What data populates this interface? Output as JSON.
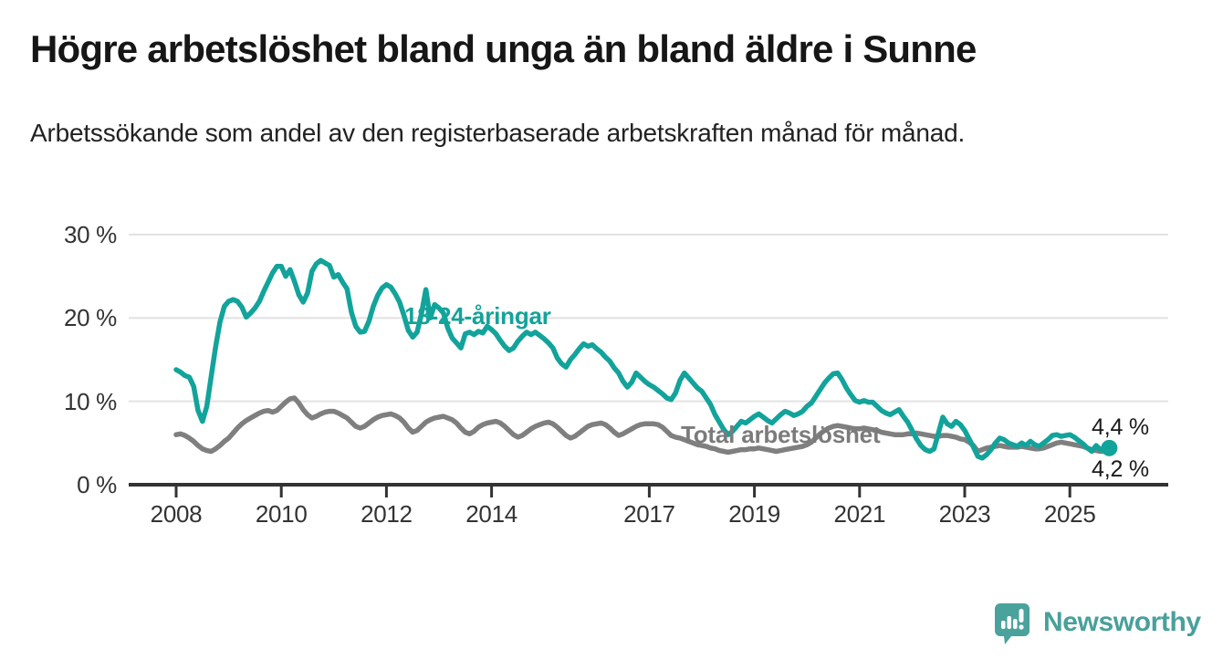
{
  "header": {
    "title": "Högre arbetslöshet bland unga än bland äldre i Sunne",
    "subtitle": "Arbetssökande som andel av den registerbaserade arbetskraften månad för månad."
  },
  "chart_data": {
    "type": "line",
    "title": "Högre arbetslöshet bland unga än bland äldre i Sunne",
    "x_start_year": 2008,
    "x_start_month": 1,
    "frequency": "monthly",
    "x_ticks": [
      2008,
      2010,
      2012,
      2014,
      2017,
      2019,
      2021,
      2023,
      2025
    ],
    "y_ticks": [
      {
        "value": 0,
        "label": "0 %"
      },
      {
        "value": 10,
        "label": "10 %"
      },
      {
        "value": 20,
        "label": "20 %"
      },
      {
        "value": 30,
        "label": "30 %"
      }
    ],
    "ylim": [
      0,
      32
    ],
    "grid": true,
    "grid_color": "#e2e2e2",
    "axis_color": "#333333",
    "legend_position": "inline-labels",
    "series": [
      {
        "name": "18-24-åringar",
        "color": "#12a39b",
        "end_value_label": "4,4 %",
        "values": [
          13.8,
          13.5,
          13.1,
          12.9,
          11.8,
          8.9,
          7.6,
          9.4,
          13.0,
          16.5,
          19.5,
          21.4,
          22.0,
          22.2,
          22.0,
          21.3,
          20.1,
          20.6,
          21.2,
          22.0,
          23.2,
          24.3,
          25.4,
          26.2,
          26.2,
          25.0,
          25.8,
          24.4,
          22.8,
          21.9,
          23.0,
          25.6,
          26.5,
          26.9,
          26.6,
          26.3,
          24.9,
          25.2,
          24.3,
          23.5,
          20.7,
          19.0,
          18.3,
          18.4,
          19.6,
          21.4,
          22.7,
          23.6,
          24.0,
          23.7,
          22.9,
          21.9,
          20.3,
          18.5,
          17.7,
          18.3,
          20.5,
          23.4,
          20.0,
          21.6,
          21.2,
          20.6,
          18.8,
          17.6,
          17.0,
          16.4,
          18.1,
          18.3,
          18.0,
          18.4,
          18.2,
          19.0,
          18.6,
          18.1,
          17.3,
          16.6,
          16.1,
          16.4,
          17.2,
          17.8,
          18.3,
          18.0,
          18.3,
          17.9,
          17.5,
          17.0,
          16.4,
          15.2,
          14.5,
          14.1,
          15.0,
          15.6,
          16.3,
          16.9,
          16.6,
          16.8,
          16.3,
          15.9,
          15.3,
          14.8,
          14.0,
          13.4,
          12.4,
          11.7,
          12.3,
          13.4,
          12.9,
          12.4,
          12.0,
          11.7,
          11.3,
          10.9,
          10.4,
          10.2,
          11.0,
          12.5,
          13.4,
          12.8,
          12.2,
          11.6,
          11.2,
          10.4,
          9.6,
          8.4,
          7.5,
          6.6,
          6.0,
          6.4,
          7.0,
          7.6,
          7.4,
          7.8,
          8.2,
          8.5,
          8.1,
          7.7,
          7.4,
          7.9,
          8.4,
          8.8,
          8.6,
          8.3,
          8.5,
          8.8,
          9.4,
          9.8,
          10.6,
          11.4,
          12.2,
          12.8,
          13.3,
          13.4,
          12.6,
          11.6,
          10.8,
          10.1,
          9.9,
          10.1,
          9.9,
          9.9,
          9.4,
          8.9,
          8.6,
          8.4,
          8.7,
          9.0,
          8.2,
          7.5,
          6.5,
          5.5,
          4.7,
          4.2,
          4.0,
          4.3,
          6.2,
          8.1,
          7.3,
          7.0,
          7.6,
          7.2,
          6.5,
          5.5,
          4.5,
          3.4,
          3.2,
          3.6,
          4.2,
          5.0,
          5.6,
          5.4,
          5.0,
          4.8,
          4.6,
          5.0,
          4.7,
          5.2,
          4.8,
          4.6,
          5.0,
          5.4,
          5.9,
          6.0,
          5.8,
          5.9,
          6.0,
          5.7,
          5.3,
          4.9,
          4.4,
          4.0,
          4.7,
          4.2,
          4.0,
          4.4
        ]
      },
      {
        "name": "Total arbetslöshet",
        "color": "#7f7f7f",
        "end_value_label": "4,2 %",
        "values": [
          6.0,
          6.1,
          5.9,
          5.6,
          5.2,
          4.7,
          4.3,
          4.1,
          4.0,
          4.3,
          4.7,
          5.2,
          5.6,
          6.2,
          6.8,
          7.3,
          7.7,
          8.0,
          8.3,
          8.6,
          8.8,
          8.9,
          8.7,
          8.9,
          9.4,
          9.9,
          10.3,
          10.4,
          9.8,
          9.0,
          8.4,
          8.0,
          8.2,
          8.5,
          8.7,
          8.8,
          8.8,
          8.6,
          8.3,
          8.0,
          7.5,
          7.0,
          6.8,
          7.0,
          7.4,
          7.8,
          8.1,
          8.3,
          8.4,
          8.5,
          8.3,
          8.0,
          7.5,
          6.8,
          6.3,
          6.5,
          7.0,
          7.5,
          7.8,
          8.0,
          8.1,
          8.2,
          8.0,
          7.8,
          7.4,
          6.8,
          6.3,
          6.1,
          6.4,
          6.9,
          7.2,
          7.4,
          7.5,
          7.6,
          7.4,
          7.0,
          6.5,
          6.0,
          5.7,
          5.9,
          6.3,
          6.7,
          7.0,
          7.2,
          7.4,
          7.5,
          7.3,
          6.9,
          6.4,
          5.9,
          5.6,
          5.8,
          6.2,
          6.6,
          7.0,
          7.2,
          7.3,
          7.4,
          7.2,
          6.8,
          6.3,
          5.9,
          6.1,
          6.4,
          6.7,
          7.0,
          7.2,
          7.3,
          7.3,
          7.3,
          7.2,
          6.9,
          6.4,
          5.9,
          5.7,
          5.6,
          5.4,
          5.2,
          5.0,
          4.8,
          4.7,
          4.6,
          4.4,
          4.3,
          4.1,
          4.0,
          3.9,
          4.0,
          4.1,
          4.2,
          4.2,
          4.3,
          4.3,
          4.4,
          4.3,
          4.2,
          4.1,
          4.0,
          4.1,
          4.2,
          4.3,
          4.4,
          4.5,
          4.6,
          4.8,
          5.1,
          5.6,
          6.1,
          6.5,
          6.8,
          7.0,
          7.1,
          7.0,
          6.9,
          6.8,
          6.7,
          6.7,
          6.8,
          6.7,
          6.6,
          6.5,
          6.3,
          6.2,
          6.1,
          6.0,
          6.0,
          6.0,
          6.1,
          6.1,
          6.2,
          6.1,
          6.0,
          5.9,
          5.8,
          5.8,
          5.9,
          5.9,
          5.8,
          5.7,
          5.5,
          5.4,
          5.1,
          4.7,
          4.0,
          4.2,
          4.4,
          4.5,
          4.6,
          4.7,
          4.6,
          4.5,
          4.5,
          4.5,
          4.6,
          4.5,
          4.4,
          4.3,
          4.3,
          4.4,
          4.6,
          4.8,
          5.0,
          5.1,
          5.0,
          4.9,
          4.8,
          4.7,
          4.6,
          4.4,
          4.2,
          4.1,
          4.0,
          4.0,
          4.2
        ]
      }
    ],
    "end_labels": {
      "youth": "4,4 %",
      "total": "4,2 %"
    }
  },
  "footer": {
    "brand": "Newsworthy"
  }
}
